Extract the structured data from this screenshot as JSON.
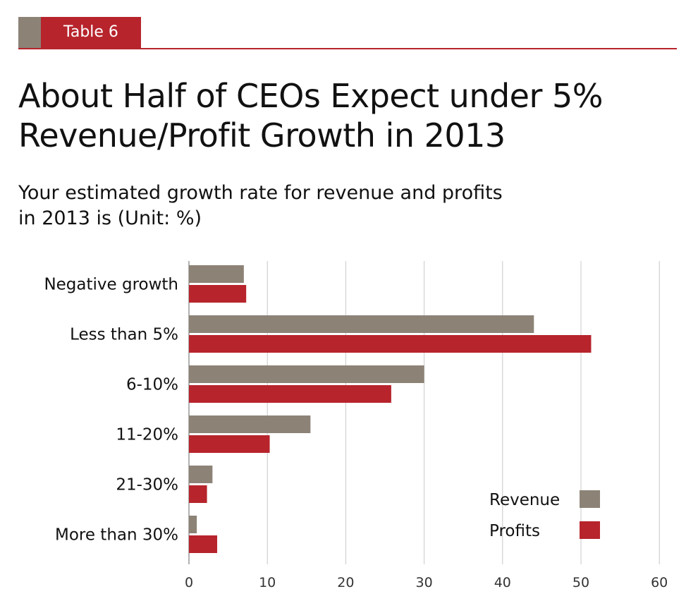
{
  "header": {
    "table_label": "Table 6"
  },
  "title_line1": "About Half of CEOs Expect under 5%",
  "title_line2": "Revenue/Profit Growth in 2013",
  "subtitle_line1": "Your estimated growth rate for revenue and profits",
  "subtitle_line2": "in 2013 is (Unit: %)",
  "colors": {
    "revenue": "#8c8276",
    "profits": "#b7242c",
    "grid": "#c8c8c8"
  },
  "chart_data": {
    "type": "bar",
    "orientation": "horizontal",
    "categories": [
      "Negative growth",
      "Less than 5%",
      "6-10%",
      "11-20%",
      "21-30%",
      "More than 30%"
    ],
    "series": [
      {
        "name": "Revenue",
        "values": [
          7,
          44,
          30,
          15.5,
          3,
          1
        ]
      },
      {
        "name": "Profits",
        "values": [
          7.3,
          51.3,
          25.8,
          10.3,
          2.3,
          3.6
        ]
      }
    ],
    "xlim": [
      0,
      60
    ],
    "xticks": [
      0,
      10,
      20,
      30,
      40,
      50,
      60
    ],
    "grid": true,
    "legend_position": "bottom-right"
  }
}
